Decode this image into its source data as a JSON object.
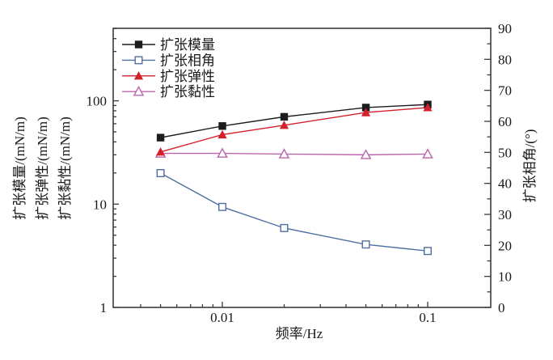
{
  "figure": {
    "background": "#ffffff",
    "axis_color": "#3c3c3c"
  },
  "chart_data": {
    "type": "line",
    "title": "",
    "xlabel": "频率/Hz",
    "ylabel_left": "扩张模量/弹性/黏性 (mN/m)",
    "ylabel_right": "扩张相角/(°)",
    "grid": false,
    "x": [
      0.005,
      0.01,
      0.02,
      0.05,
      0.1
    ],
    "series": [
      {
        "key": "modulus",
        "label": "扩张模量",
        "axis": "left",
        "color": "#1c1c1c",
        "marker": "square-filled",
        "values": [
          44,
          57,
          70,
          86,
          92
        ]
      },
      {
        "key": "phase-angle",
        "label": "扩张相角",
        "axis": "right",
        "color": "#4f6fa0",
        "marker": "square-open",
        "values": [
          43.3,
          32.4,
          25.6,
          20.3,
          18.2
        ]
      },
      {
        "key": "elasticity",
        "label": "扩张弹性",
        "axis": "left",
        "color": "#d3202a",
        "marker": "triangle-filled",
        "values": [
          32,
          47,
          58,
          77,
          86
        ]
      },
      {
        "key": "viscosity",
        "label": "扩张黏性",
        "axis": "right",
        "color": "#bb64ab",
        "marker": "triangle-open",
        "values_axis": "left",
        "values": [
          31,
          31,
          30.5,
          30,
          30.5
        ]
      }
    ],
    "x_axis": {
      "label": "频率/Hz",
      "scale": "log",
      "range": [
        0.00294,
        0.2028
      ],
      "major_ticks": [
        0.01,
        0.1
      ],
      "major_tick_labels": [
        "0.01",
        "0.1"
      ],
      "minor_ticks": [
        0.004,
        0.005,
        0.006,
        0.007,
        0.008,
        0.009,
        0.02,
        0.03,
        0.04,
        0.05,
        0.06,
        0.07,
        0.08,
        0.09
      ]
    },
    "y_axis_left": {
      "titles": [
        "扩张模量/(mN/m)",
        "扩张弹性/(mN/m)",
        "扩张黏性/(mN/m)"
      ],
      "scale": "log",
      "range": [
        1,
        503
      ],
      "major_ticks": [
        1,
        10,
        100
      ],
      "major_tick_labels": [
        "1",
        "10",
        "100"
      ],
      "minor_ticks": [
        2,
        3,
        4,
        5,
        6,
        7,
        8,
        9,
        20,
        30,
        40,
        50,
        60,
        70,
        80,
        90,
        200,
        300,
        400,
        500
      ]
    },
    "y_axis_right": {
      "title": "扩张相角/(°)",
      "scale": "linear",
      "range": [
        0,
        90
      ],
      "major_ticks": [
        0,
        10,
        20,
        30,
        40,
        50,
        60,
        70,
        80,
        90
      ],
      "major_tick_labels": [
        "0",
        "10",
        "20",
        "30",
        "40",
        "50",
        "60",
        "70",
        "80",
        "90"
      ],
      "minor_ticks": [
        5,
        15,
        25,
        35,
        45,
        55,
        65,
        75,
        85
      ]
    },
    "legend": {
      "position": "top-left"
    }
  }
}
